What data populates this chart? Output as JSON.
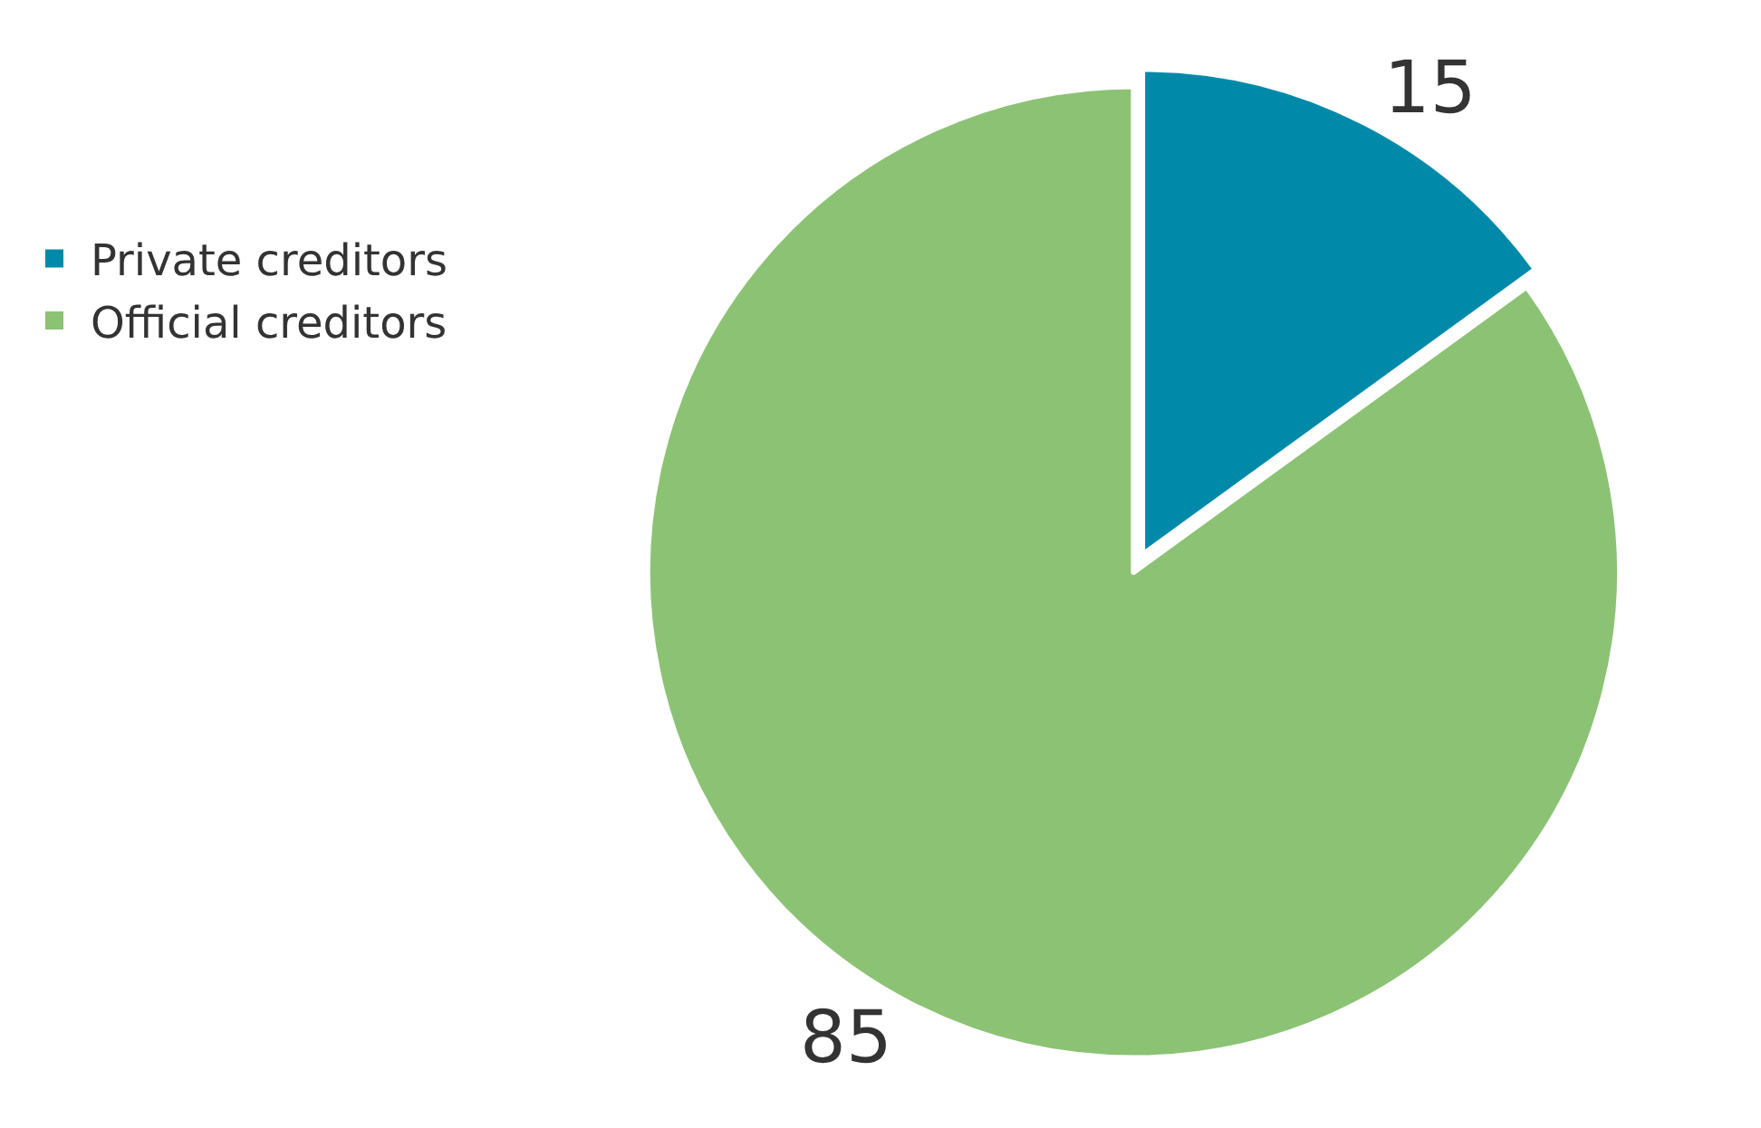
{
  "chart_data": {
    "type": "pie",
    "categories": [
      "Private creditors",
      "Official creditors"
    ],
    "values": [
      15,
      85
    ],
    "colors": [
      "#0089a8",
      "#8cc274"
    ],
    "data_labels": true,
    "legend": "left"
  }
}
